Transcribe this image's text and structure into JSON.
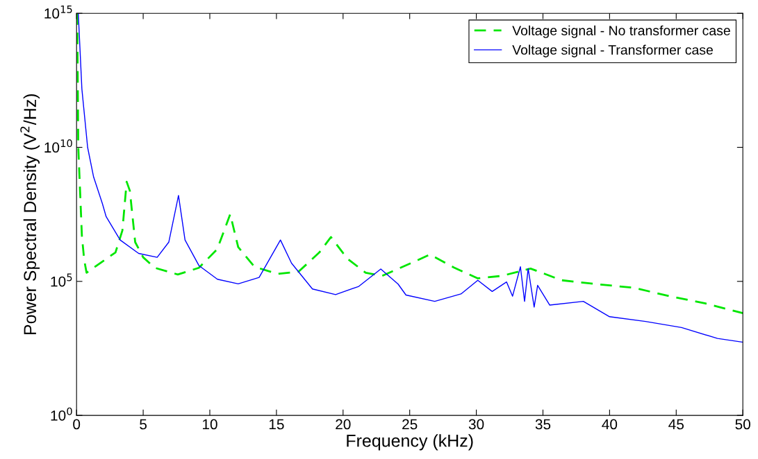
{
  "chart_data": {
    "type": "line",
    "xlabel": "Frequency (kHz)",
    "ylabel": "Power Spectral Density (V$^{2}$/Hz)",
    "log": "y",
    "xlim": [
      0,
      50
    ],
    "ylim": [
      1,
      1000000000000000.0
    ],
    "xticks": [
      0,
      5,
      10,
      15,
      20,
      25,
      30,
      35,
      40,
      45,
      50
    ],
    "yticks": [
      {
        "value": 1,
        "label": "10$^{0}$"
      },
      {
        "value": 100000,
        "label": "10$^{5}$"
      },
      {
        "value": 10000000000,
        "label": "10$^{10}$"
      },
      {
        "value": 1000000000000000,
        "label": "10$^{15}$"
      }
    ],
    "grid": false,
    "legend": "top right",
    "marker": "none",
    "series": [
      {
        "name": "Voltage signal - No transformer case",
        "color": "#00e600",
        "line_style": "dashed",
        "x": [
          0.05,
          0.13,
          0.4,
          0.57,
          0.75,
          2.92,
          3.44,
          3.76,
          4.0,
          4.4,
          5.0,
          5.87,
          7.6,
          9.18,
          10.56,
          11.53,
          12.13,
          13.35,
          15.09,
          16.66,
          18.22,
          19.09,
          20.31,
          21.7,
          22.92,
          25.52,
          26.52,
          28.31,
          30.11,
          31.91,
          34.07,
          36.41,
          39.09,
          41.8,
          44.5,
          47.2,
          50
        ],
        "values": [
          1000000000000000.0,
          10000000000.0,
          5000000.0,
          650000.0,
          210000.0,
          1200000.0,
          7900000.0,
          520000000.0,
          240000000.0,
          2900000.0,
          790000.0,
          320000.0,
          180000.0,
          320000.0,
          1600000.0,
          32000000.0,
          1900000.0,
          350000.0,
          190000.0,
          230000.0,
          1200000.0,
          4500000.0,
          710000.0,
          210000.0,
          160000.0,
          590000.0,
          1000000.0,
          330000.0,
          130000.0,
          160000.0,
          300000.0,
          110000.0,
          78000.0,
          58000.0,
          28000.0,
          15000.0,
          6500.0
        ]
      },
      {
        "name": "Voltage signal - Transformer case",
        "color": "#0000ff",
        "line_style": "solid",
        "x": [
          0.13,
          0.4,
          0.83,
          1.28,
          1.94,
          2.22,
          3.27,
          4.66,
          6.05,
          6.92,
          7.65,
          8.14,
          9.18,
          10.57,
          12.13,
          13.7,
          15.3,
          16.13,
          17.7,
          19.44,
          21.18,
          22.83,
          24.13,
          24.72,
          26.88,
          28.85,
          30.11,
          31.19,
          32.27,
          32.72,
          33.31,
          33.62,
          33.89,
          34.34,
          34.6,
          35.51,
          38.03,
          40.0,
          42.7,
          45.4,
          48.1,
          50
        ],
        "values": [
          1000000000000000.0,
          1500000000000.0,
          10000000000.0,
          780000000.0,
          79000000.0,
          26000000.0,
          3500000.0,
          1100000.0,
          790000.0,
          2900000.0,
          160000000.0,
          3500000.0,
          390000.0,
          120000.0,
          81000.0,
          140000.0,
          3500000.0,
          480000.0,
          52000.0,
          32000.0,
          65000.0,
          290000.0,
          79000.0,
          31000.0,
          18000.0,
          34000.0,
          110000.0,
          42000.0,
          95000.0,
          28000.0,
          350000.0,
          18000.0,
          300000.0,
          11000.0,
          71000.0,
          13000.0,
          18000.0,
          4800.0,
          3200.0,
          1900.0,
          740.0,
          540.0
        ]
      }
    ]
  }
}
